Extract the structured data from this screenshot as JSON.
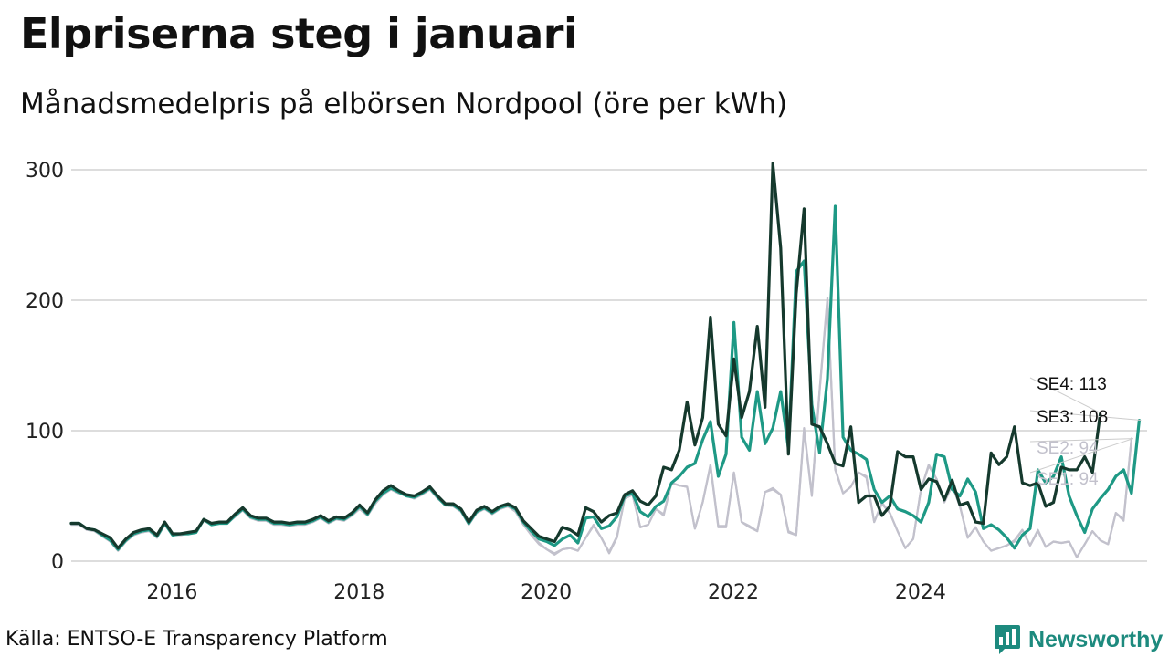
{
  "header": {
    "title": "Elpriserna steg i januari",
    "subtitle": "Månadsmedelpris på elbörsen Nordpool (öre per kWh)"
  },
  "footer": {
    "source": "Källa: ENTSO-E Transparency Platform",
    "brand": "Newsworthy"
  },
  "colors": {
    "SE4": "#15392d",
    "SE3": "#1e9985",
    "SE2": "#c2c1cc",
    "SE1": "#c2c1cc",
    "grid": "#dddddd",
    "brand": "#1d8a7e"
  },
  "chart_data": {
    "type": "line",
    "title": "Elpriserna steg i januari",
    "subtitle": "Månadsmedelpris på elbörsen Nordpool (öre per kWh)",
    "xlabel": "",
    "ylabel": "",
    "x_start": 2015.0,
    "x_step": 0.08333,
    "xlim": [
      2015.0,
      2026.5
    ],
    "ylim": [
      0,
      300
    ],
    "x_ticks": [
      2016,
      2018,
      2020,
      2022,
      2024
    ],
    "x_tick_labels": [
      "2016",
      "2018",
      "2020",
      "2022",
      "2024"
    ],
    "y_ticks": [
      0,
      100,
      200,
      300
    ],
    "y_tick_labels": [
      "0",
      "100",
      "200",
      "300"
    ],
    "grid": "horizontal",
    "legend": "direct labels at right end of lines",
    "series": [
      {
        "name": "SE1",
        "label": "SE1: 94",
        "last_value": 94,
        "values": [
          28,
          28,
          24,
          23,
          19,
          15,
          8,
          15,
          20,
          22,
          23,
          18,
          28,
          20,
          20,
          21,
          22,
          31,
          28,
          29,
          29,
          34,
          39,
          33,
          31,
          31,
          28,
          28,
          27,
          28,
          28,
          30,
          33,
          29,
          32,
          31,
          35,
          40,
          35,
          44,
          51,
          55,
          52,
          50,
          48,
          51,
          55,
          48,
          43,
          42,
          38,
          28,
          37,
          40,
          36,
          40,
          42,
          38,
          28,
          20,
          13,
          9,
          5,
          9,
          10,
          8,
          18,
          27,
          18,
          6,
          18,
          48,
          51,
          26,
          28,
          40,
          35,
          60,
          58,
          57,
          25,
          45,
          73,
          26,
          26,
          68,
          30,
          26,
          23,
          53,
          55,
          51,
          22,
          20,
          100,
          50,
          130,
          200,
          70,
          52,
          57,
          68,
          64,
          30,
          44,
          37,
          23,
          10,
          17,
          55,
          73,
          63,
          45,
          58,
          42,
          18,
          26,
          15,
          8,
          10,
          12,
          15,
          24,
          12,
          23,
          11,
          15,
          14,
          15,
          3,
          13,
          23,
          16,
          13,
          37,
          31,
          94
        ]
      },
      {
        "name": "SE2",
        "label": "SE2: 94",
        "last_value": 94,
        "values": [
          28,
          28,
          24,
          23,
          19,
          15,
          8,
          15,
          20,
          22,
          23,
          18,
          28,
          20,
          20,
          21,
          22,
          31,
          28,
          29,
          29,
          34,
          39,
          33,
          31,
          31,
          28,
          28,
          27,
          28,
          28,
          30,
          33,
          29,
          32,
          31,
          35,
          40,
          35,
          44,
          51,
          55,
          52,
          50,
          48,
          51,
          55,
          48,
          43,
          42,
          38,
          28,
          37,
          40,
          36,
          40,
          42,
          38,
          28,
          21,
          14,
          9,
          6,
          9,
          10,
          8,
          18,
          28,
          18,
          7,
          19,
          48,
          51,
          26,
          28,
          40,
          36,
          60,
          58,
          57,
          25,
          45,
          74,
          27,
          27,
          68,
          30,
          27,
          23,
          53,
          56,
          51,
          23,
          20,
          102,
          51,
          131,
          202,
          71,
          52,
          57,
          68,
          65,
          30,
          45,
          37,
          23,
          10,
          17,
          55,
          74,
          63,
          46,
          58,
          42,
          18,
          26,
          15,
          8,
          10,
          12,
          16,
          24,
          12,
          24,
          11,
          15,
          14,
          15,
          3,
          13,
          23,
          16,
          13,
          37,
          32,
          94
        ]
      },
      {
        "name": "SE3",
        "label": "SE3: 108",
        "last_value": 108,
        "values": [
          29,
          29,
          25,
          24,
          20,
          16,
          9,
          16,
          21,
          23,
          24,
          19,
          29,
          20,
          21,
          21,
          22,
          32,
          28,
          29,
          29,
          35,
          40,
          34,
          32,
          32,
          29,
          29,
          28,
          29,
          29,
          31,
          34,
          30,
          33,
          32,
          36,
          42,
          36,
          46,
          52,
          56,
          53,
          50,
          49,
          52,
          56,
          49,
          43,
          43,
          39,
          29,
          38,
          41,
          37,
          41,
          43,
          40,
          30,
          23,
          17,
          15,
          12,
          17,
          20,
          14,
          33,
          34,
          25,
          27,
          34,
          50,
          52,
          38,
          34,
          42,
          46,
          60,
          65,
          72,
          75,
          93,
          107,
          65,
          82,
          183,
          95,
          85,
          130,
          90,
          102,
          130,
          86,
          222,
          230,
          120,
          83,
          140,
          272,
          95,
          85,
          82,
          78,
          55,
          45,
          50,
          40,
          38,
          35,
          30,
          45,
          82,
          80,
          55,
          50,
          63,
          53,
          25,
          28,
          24,
          18,
          10,
          20,
          25,
          70,
          60,
          65,
          80,
          50,
          35,
          22,
          40,
          48,
          55,
          65,
          70,
          52,
          108
        ]
      },
      {
        "name": "SE4",
        "label": "SE4: 113",
        "last_value": 113,
        "values": [
          29,
          29,
          25,
          24,
          21,
          18,
          10,
          17,
          22,
          24,
          25,
          20,
          30,
          21,
          21,
          22,
          23,
          32,
          29,
          30,
          30,
          36,
          41,
          35,
          33,
          33,
          30,
          30,
          29,
          30,
          30,
          32,
          35,
          31,
          34,
          33,
          37,
          43,
          37,
          47,
          54,
          58,
          54,
          51,
          50,
          53,
          57,
          50,
          44,
          44,
          40,
          30,
          39,
          42,
          38,
          42,
          44,
          41,
          31,
          25,
          19,
          17,
          15,
          26,
          24,
          20,
          41,
          38,
          30,
          35,
          37,
          51,
          54,
          46,
          43,
          50,
          72,
          70,
          85,
          122,
          89,
          110,
          187,
          105,
          96,
          155,
          110,
          130,
          180,
          118,
          305,
          240,
          82,
          205,
          270,
          105,
          103,
          90,
          75,
          73,
          103,
          45,
          50,
          50,
          35,
          42,
          84,
          80,
          80,
          55,
          63,
          61,
          47,
          62,
          43,
          45,
          30,
          29,
          83,
          74,
          80,
          103,
          60,
          58,
          60,
          42,
          45,
          72,
          70,
          70,
          80,
          68,
          113
        ]
      }
    ]
  }
}
